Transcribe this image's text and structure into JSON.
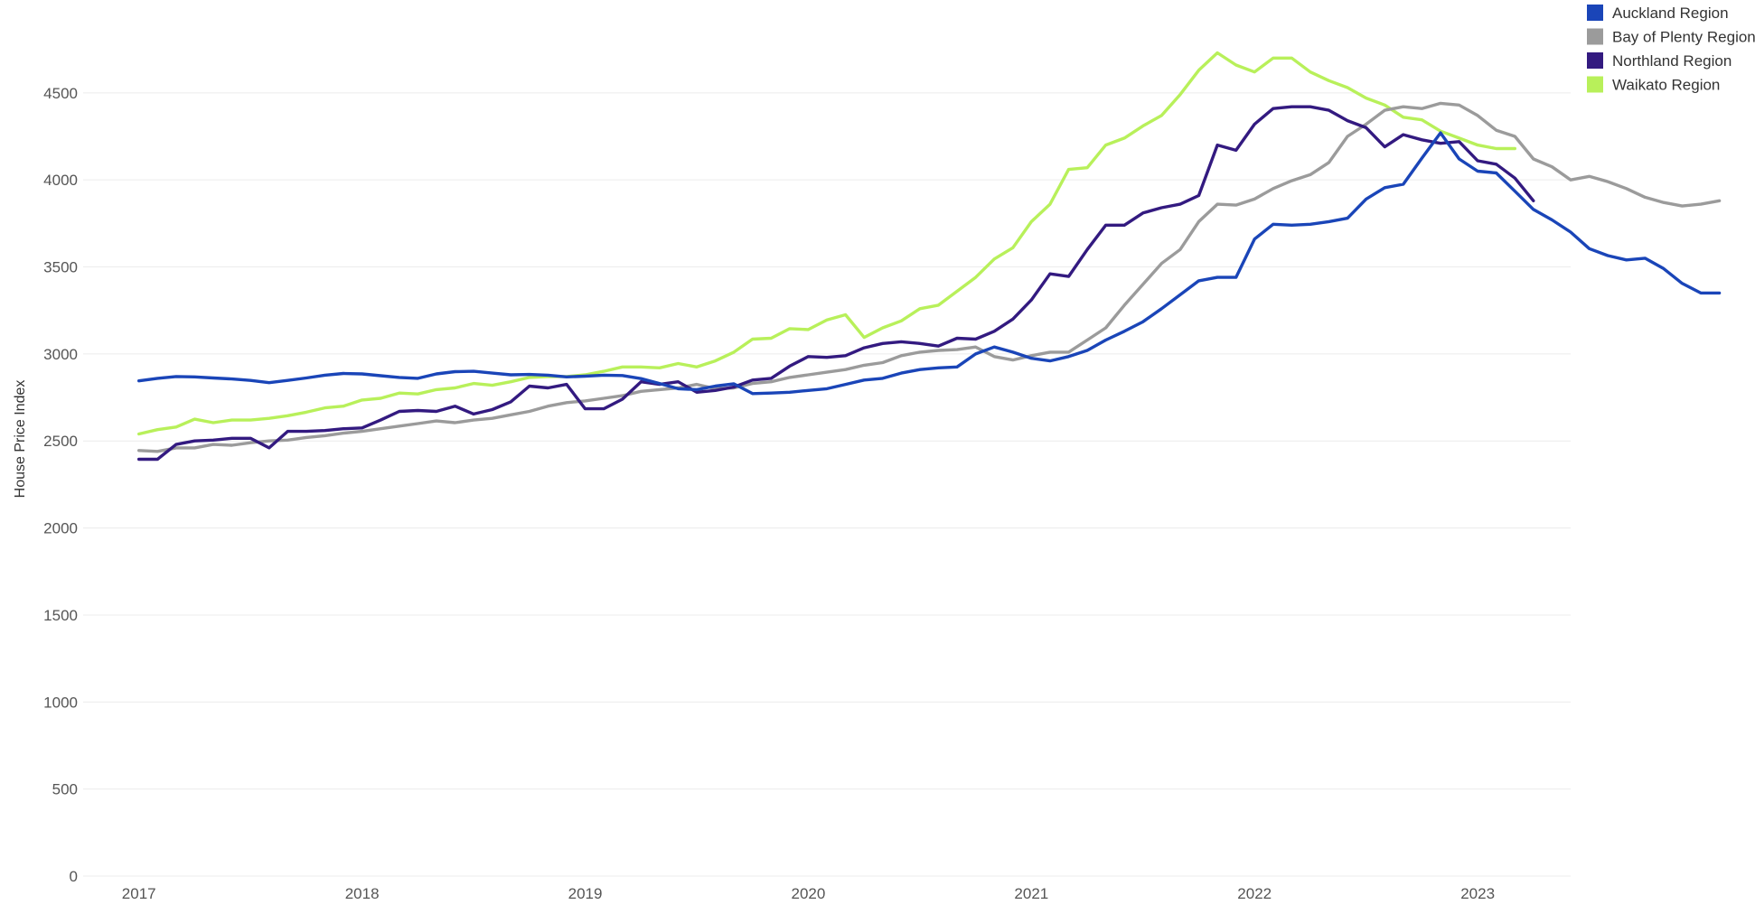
{
  "chart_data": {
    "type": "line",
    "title": "",
    "xlabel": "",
    "ylabel": "House Price Index",
    "ylim": [
      0,
      4800
    ],
    "xlim": [
      "2016-10",
      "2023-06"
    ],
    "yticks": [
      0,
      500,
      1000,
      1500,
      2000,
      2500,
      3000,
      3500,
      4000,
      4500
    ],
    "xticks": [
      "2017",
      "2018",
      "2019",
      "2020",
      "2021",
      "2022",
      "2023"
    ],
    "grid": true,
    "legend_position": "top-right",
    "x_start": "2017-01",
    "x_interval": "monthly",
    "series": [
      {
        "name": "Auckland Region",
        "color": "#1a45b8",
        "values": [
          2845,
          2860,
          2870,
          2868,
          2862,
          2856,
          2848,
          2835,
          2848,
          2862,
          2878,
          2888,
          2885,
          2875,
          2865,
          2860,
          2885,
          2898,
          2900,
          2890,
          2880,
          2882,
          2878,
          2868,
          2872,
          2878,
          2876,
          2858,
          2830,
          2800,
          2795,
          2815,
          2828,
          2772,
          2775,
          2780,
          2790,
          2800,
          2825,
          2850,
          2860,
          2890,
          2910,
          2920,
          2925,
          3000,
          3040,
          3010,
          2975,
          2960,
          2985,
          3020,
          3080,
          3130,
          3185,
          3260,
          3340,
          3420,
          3440,
          3440,
          3660,
          3745,
          3740,
          3745,
          3760,
          3780,
          3890,
          3955,
          3975,
          4125,
          4270,
          4120,
          4050,
          4040,
          3935,
          3830,
          3770,
          3700,
          3605,
          3565,
          3540,
          3550,
          3490,
          3405,
          3350,
          3350
        ]
      },
      {
        "name": "Bay of Plenty Region",
        "color": "#9b9b9b",
        "values": [
          2445,
          2440,
          2460,
          2460,
          2480,
          2475,
          2490,
          2500,
          2505,
          2520,
          2530,
          2545,
          2555,
          2570,
          2585,
          2600,
          2615,
          2605,
          2620,
          2630,
          2650,
          2670,
          2700,
          2720,
          2730,
          2745,
          2760,
          2785,
          2795,
          2805,
          2825,
          2800,
          2805,
          2830,
          2840,
          2865,
          2880,
          2895,
          2910,
          2935,
          2950,
          2990,
          3010,
          3020,
          3025,
          3040,
          2985,
          2965,
          2990,
          3010,
          3010,
          3080,
          3150,
          3280,
          3400,
          3520,
          3600,
          3760,
          3860,
          3855,
          3890,
          3950,
          3995,
          4030,
          4100,
          4250,
          4320,
          4400,
          4420,
          4410,
          4440,
          4430,
          4370,
          4285,
          4250,
          4120,
          4075,
          4000,
          4020,
          3990,
          3950,
          3900,
          3870,
          3850,
          3860,
          3880
        ]
      },
      {
        "name": "Northland Region",
        "color": "#331a80",
        "values": [
          2395,
          2395,
          2480,
          2500,
          2505,
          2515,
          2515,
          2460,
          2555,
          2555,
          2560,
          2570,
          2575,
          2620,
          2670,
          2675,
          2670,
          2700,
          2655,
          2680,
          2725,
          2815,
          2805,
          2825,
          2685,
          2685,
          2740,
          2840,
          2825,
          2840,
          2780,
          2790,
          2810,
          2850,
          2860,
          2930,
          2985,
          2980,
          2990,
          3035,
          3060,
          3070,
          3060,
          3045,
          3090,
          3085,
          3130,
          3200,
          3310,
          3460,
          3445,
          3600,
          3740,
          3740,
          3810,
          3840,
          3860,
          3910,
          4200,
          4170,
          4320,
          4410,
          4420,
          4420,
          4400,
          4340,
          4300,
          4190,
          4260,
          4230,
          4210,
          4220,
          4110,
          4090,
          4010,
          3880
        ]
      },
      {
        "name": "Waikato Region",
        "color": "#b8f05a",
        "values": [
          2540,
          2565,
          2580,
          2625,
          2605,
          2620,
          2620,
          2630,
          2645,
          2665,
          2690,
          2700,
          2735,
          2745,
          2775,
          2770,
          2795,
          2805,
          2830,
          2820,
          2840,
          2865,
          2870,
          2870,
          2880,
          2900,
          2925,
          2925,
          2920,
          2945,
          2925,
          2960,
          3010,
          3085,
          3090,
          3145,
          3140,
          3195,
          3225,
          3095,
          3150,
          3190,
          3260,
          3280,
          3360,
          3440,
          3545,
          3610,
          3760,
          3860,
          4060,
          4070,
          4200,
          4240,
          4310,
          4370,
          4490,
          4630,
          4730,
          4660,
          4620,
          4700,
          4700,
          4620,
          4570,
          4530,
          4470,
          4430,
          4360,
          4345,
          4280,
          4240,
          4200,
          4180,
          4180
        ]
      }
    ]
  }
}
